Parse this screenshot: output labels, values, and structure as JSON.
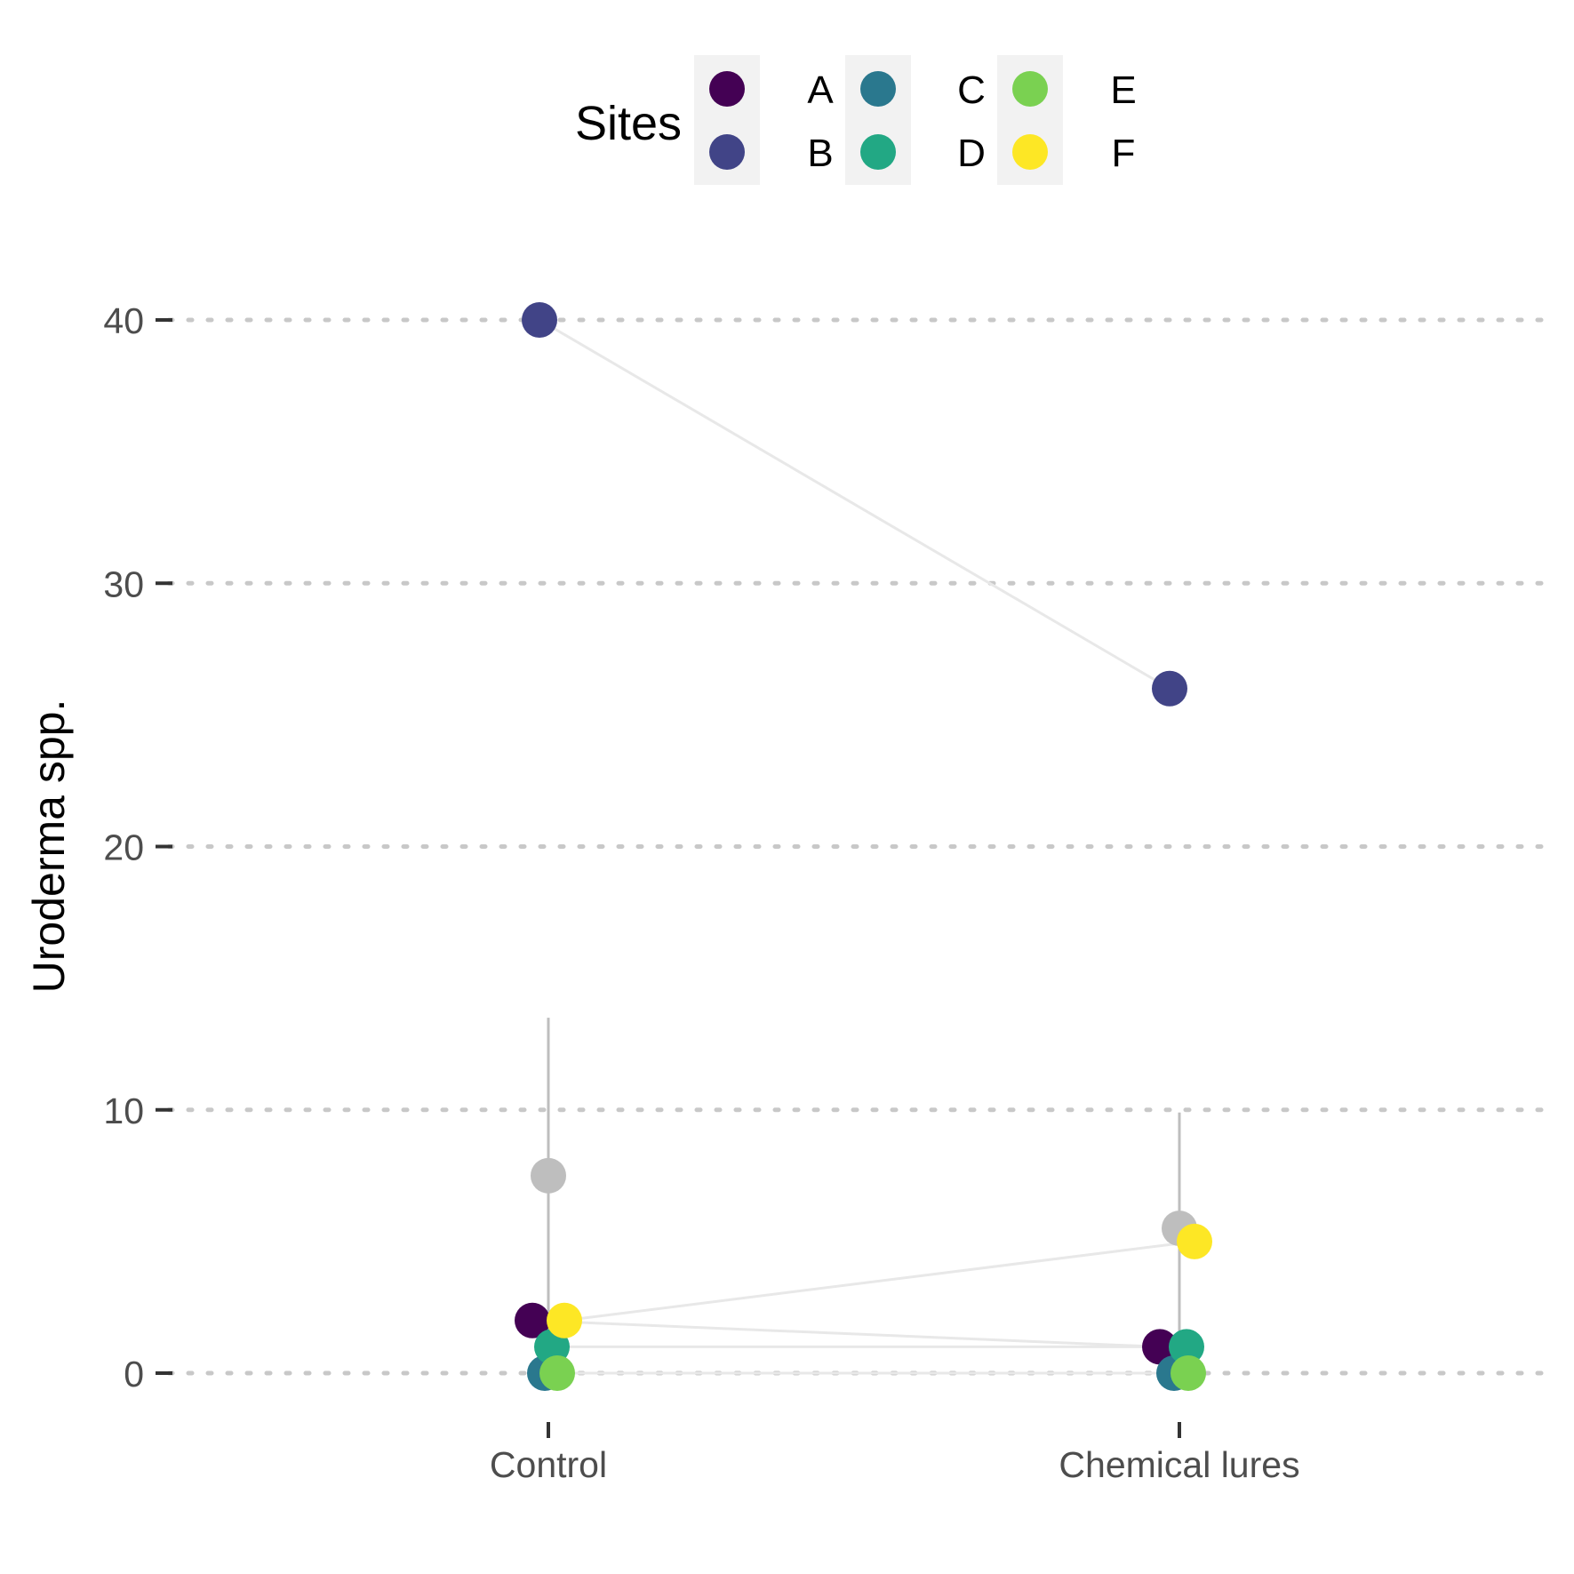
{
  "chart_data": {
    "type": "scatter",
    "subtype": "paired-dot-plot",
    "ylabel": "Uroderma spp.",
    "xlabel": "",
    "categories": [
      "Control",
      "Chemical lures"
    ],
    "ylim": [
      -1.5,
      46.5
    ],
    "yticks": [
      0,
      10,
      20,
      30,
      40
    ],
    "ytick_labels": [
      "0",
      "10",
      "20",
      "30",
      "40"
    ],
    "grid": "horizontal dotted",
    "legend": {
      "title": "Sites",
      "placement": "top",
      "entries": [
        "A",
        "B",
        "C",
        "D",
        "E",
        "F"
      ]
    },
    "series": [
      {
        "name": "A",
        "color": "#440154",
        "values": [
          2,
          1
        ]
      },
      {
        "name": "B",
        "color": "#414487",
        "values": [
          40,
          26
        ]
      },
      {
        "name": "C",
        "color": "#2a788e",
        "values": [
          0,
          0
        ]
      },
      {
        "name": "D",
        "color": "#22a884",
        "values": [
          1,
          1
        ]
      },
      {
        "name": "E",
        "color": "#7ad151",
        "values": [
          0,
          0
        ]
      },
      {
        "name": "F",
        "color": "#fde725",
        "values": [
          2,
          5
        ]
      }
    ],
    "summary": {
      "color": "#bebebe",
      "means": [
        7.5,
        5.5
      ],
      "ranges": [
        [
          1.5,
          13.5
        ],
        [
          1.0,
          9.9
        ]
      ]
    }
  }
}
